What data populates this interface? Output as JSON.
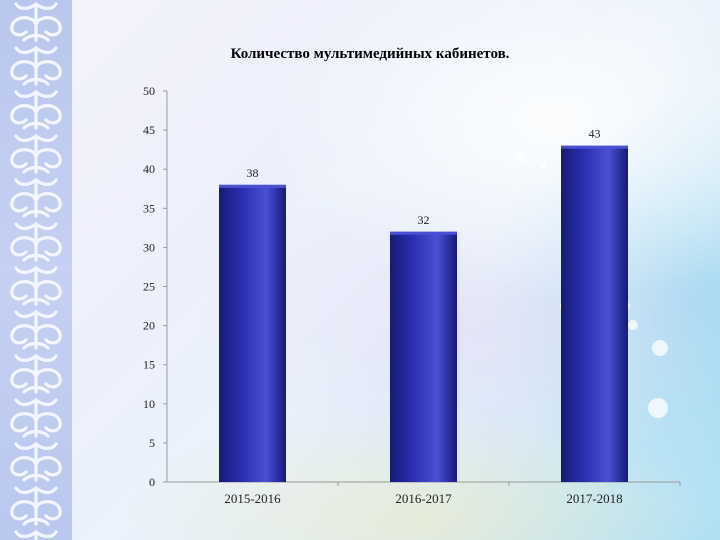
{
  "chart_data": {
    "type": "bar",
    "title": "Количество мультимедийных кабинетов.",
    "categories": [
      "2015-2016",
      "2016-2017",
      "2017-2018"
    ],
    "values": [
      38,
      32,
      43
    ],
    "ylim": [
      0,
      50
    ],
    "yticks": [
      0,
      5,
      10,
      15,
      20,
      25,
      30,
      35,
      40,
      45,
      50
    ],
    "legend": "none",
    "grid": false,
    "colors": {
      "bar": "#2b2fb0",
      "bar_dark": "#171a78",
      "bar_light": "#4a50d4",
      "axis": "#9a9a9a",
      "text": "#222222"
    }
  }
}
